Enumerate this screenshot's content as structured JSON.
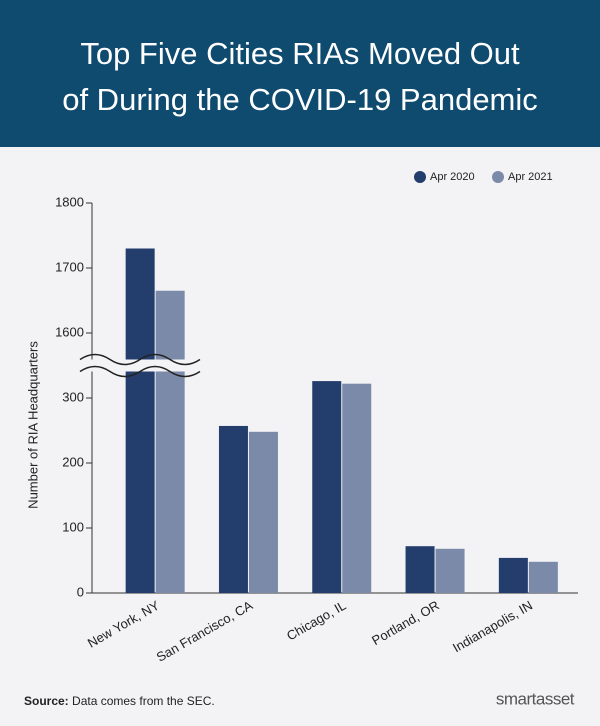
{
  "chart_data": {
    "type": "bar",
    "title": [
      "Top Five Cities RIAs Moved Out",
      "of During the COVID-19 Pandemic"
    ],
    "y_label": "Number of RIA Headquarters",
    "categories": [
      "New York, NY",
      "San Francisco, CA",
      "Chicago, IL",
      "Portland, OR",
      "Indianapolis, IN"
    ],
    "series": [
      {
        "name": "Apr 2020",
        "color": "#233d6c",
        "values": [
          1730,
          257,
          326,
          72,
          54
        ]
      },
      {
        "name": "Apr 2021",
        "color": "#7a8aa8",
        "values": [
          1665,
          248,
          322,
          68,
          48
        ]
      }
    ],
    "ylim": [
      0,
      1800
    ],
    "ybreak": [
      350,
      1550
    ],
    "yticks": [
      0,
      100,
      200,
      300,
      1600,
      1700,
      1800
    ],
    "legend": "top-right",
    "source_label": "Source:",
    "source": "Data comes from the SEC.",
    "brand": "smartasset"
  }
}
